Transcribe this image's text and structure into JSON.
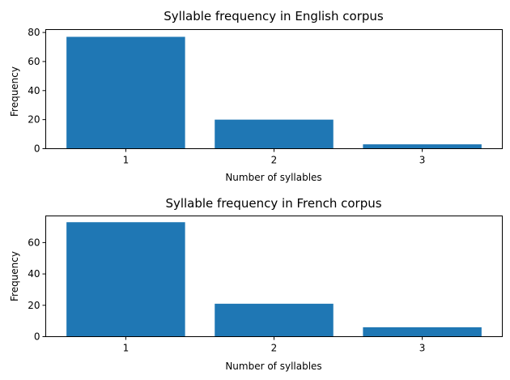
{
  "chart_data": [
    {
      "type": "bar",
      "title": "Syllable frequency in English corpus",
      "xlabel": "Number of syllables",
      "ylabel": "Frequency",
      "categories": [
        "1",
        "2",
        "3"
      ],
      "values": [
        77,
        20,
        3
      ],
      "ylim": [
        0,
        82
      ],
      "yticks": [
        0,
        20,
        40,
        60,
        80
      ],
      "bar_color": "#1f77b4",
      "grid": false,
      "legend": "none"
    },
    {
      "type": "bar",
      "title": "Syllable frequency in French corpus",
      "xlabel": "Number of syllables",
      "ylabel": "Frequency",
      "categories": [
        "1",
        "2",
        "3"
      ],
      "values": [
        73,
        21,
        6
      ],
      "ylim": [
        0,
        77
      ],
      "yticks": [
        0,
        20,
        40,
        60
      ],
      "bar_color": "#1f77b4",
      "grid": false,
      "legend": "none"
    }
  ]
}
